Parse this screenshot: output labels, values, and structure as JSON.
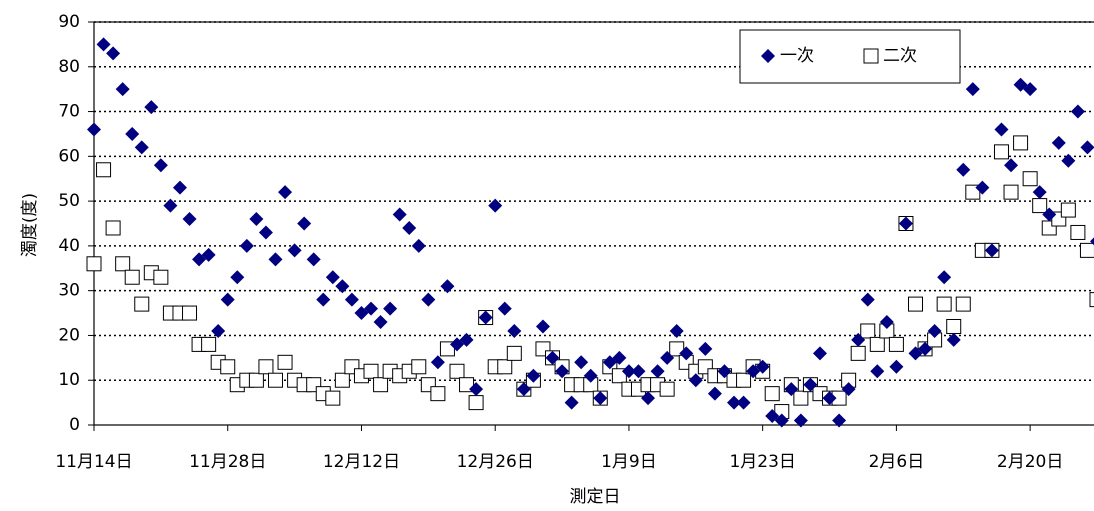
{
  "chart_data": {
    "type": "scatter",
    "xlabel": "測定日",
    "ylabel": "濁度(度)",
    "xlim": [
      0,
      105
    ],
    "xticks": [
      {
        "value": 0,
        "label": "11月14日"
      },
      {
        "value": 14,
        "label": "11月28日"
      },
      {
        "value": 28,
        "label": "12月12日"
      },
      {
        "value": 42,
        "label": "12月26日"
      },
      {
        "value": 56,
        "label": "1月9日"
      },
      {
        "value": 70,
        "label": "1月23日"
      },
      {
        "value": 84,
        "label": "2月6日"
      },
      {
        "value": 98,
        "label": "2月20日"
      }
    ],
    "ylim": [
      0,
      90
    ],
    "yticks": [
      0,
      10,
      20,
      30,
      40,
      50,
      60,
      70,
      80,
      90
    ],
    "grid": true,
    "legend": "upper right",
    "x": [
      0,
      1,
      2,
      3,
      4,
      5,
      6,
      7,
      8,
      9,
      10,
      11,
      12,
      13,
      14,
      15,
      16,
      17,
      18,
      19,
      20,
      21,
      22,
      23,
      24,
      25,
      26,
      27,
      28,
      29,
      30,
      31,
      32,
      33,
      34,
      35,
      36,
      37,
      38,
      39,
      40,
      41,
      42,
      43,
      44,
      45,
      46,
      47,
      48,
      49,
      50,
      51,
      52,
      53,
      54,
      55,
      56,
      57,
      58,
      59,
      60,
      61,
      62,
      63,
      64,
      65,
      66,
      67,
      68,
      69,
      70,
      71,
      72,
      73,
      74,
      75,
      76,
      77,
      78,
      79,
      80,
      81,
      82,
      83,
      84,
      85,
      86,
      87,
      88,
      89,
      90,
      91,
      92,
      93,
      94,
      95,
      96,
      97,
      98,
      99,
      100,
      101,
      102,
      103,
      104,
      105
    ],
    "series": [
      {
        "name": "一次",
        "color": "#000080",
        "marker": "diamond",
        "values": [
          66,
          85,
          83,
          75,
          65,
          62,
          71,
          58,
          49,
          53,
          46,
          37,
          38,
          21,
          28,
          33,
          40,
          46,
          43,
          37,
          52,
          39,
          45,
          37,
          28,
          33,
          31,
          28,
          25,
          26,
          23,
          26,
          47,
          44,
          40,
          28,
          14,
          31,
          18,
          19,
          8,
          24,
          49,
          26,
          21,
          8,
          11,
          22,
          15,
          12,
          5,
          14,
          11,
          6,
          14,
          15,
          12,
          12,
          6,
          12,
          15,
          21,
          16,
          10,
          17,
          7,
          12,
          5,
          5,
          12,
          13,
          2,
          1,
          8,
          1,
          9,
          16,
          6,
          1,
          8,
          19,
          28,
          12,
          23,
          13,
          45,
          16,
          17,
          21,
          33,
          19,
          57,
          75,
          53,
          39,
          66,
          58,
          76,
          75,
          52,
          47,
          63,
          59,
          70,
          62,
          41
        ]
      },
      {
        "name": "二次",
        "color": "#000000",
        "marker": "square-open",
        "values": [
          36,
          57,
          44,
          36,
          33,
          27,
          34,
          33,
          25,
          25,
          25,
          18,
          18,
          14,
          13,
          9,
          10,
          10,
          13,
          10,
          14,
          10,
          9,
          9,
          7,
          6,
          10,
          13,
          11,
          12,
          9,
          12,
          11,
          12,
          13,
          9,
          7,
          17,
          12,
          9,
          5,
          24,
          13,
          13,
          16,
          8,
          10,
          17,
          15,
          13,
          9,
          9,
          9,
          6,
          13,
          11,
          8,
          8,
          9,
          9,
          8,
          17,
          14,
          12,
          13,
          11,
          11,
          10,
          10,
          13,
          12,
          7,
          3,
          9,
          6,
          9,
          7,
          6,
          6,
          10,
          16,
          21,
          18,
          21,
          18,
          45,
          27,
          17,
          19,
          27,
          22,
          27,
          52,
          39,
          39,
          61,
          52,
          63,
          55,
          49,
          44,
          46,
          48,
          43,
          39,
          28
        ]
      }
    ]
  }
}
